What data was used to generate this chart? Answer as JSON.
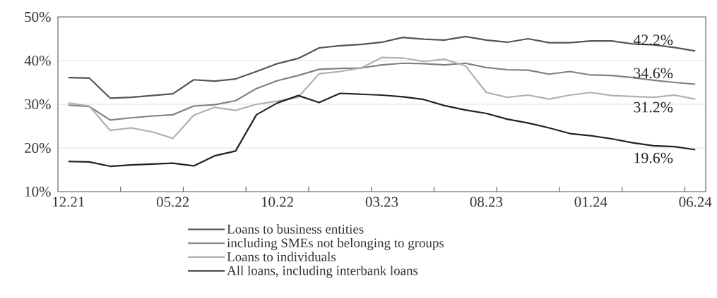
{
  "chart_data": {
    "type": "line",
    "categories": [
      "12.21",
      null,
      null,
      null,
      null,
      "05.22",
      null,
      null,
      null,
      null,
      "10.22",
      null,
      null,
      null,
      null,
      "03.23",
      null,
      null,
      null,
      null,
      "08.23",
      null,
      null,
      null,
      null,
      "01.24",
      null,
      null,
      null,
      null,
      "06.24"
    ],
    "ylim": [
      10,
      50
    ],
    "yticks": [
      {
        "value": 10,
        "label": "10%"
      },
      {
        "value": 20,
        "label": "20%"
      },
      {
        "value": 30,
        "label": "30%"
      },
      {
        "value": 40,
        "label": "40%"
      },
      {
        "value": 50,
        "label": "50%"
      }
    ],
    "grid": "y",
    "legend": "bottom",
    "marker": "none",
    "line_style": "solid",
    "series": [
      {
        "name": "Loans to business entities",
        "color": "#555555",
        "values": [
          36.1,
          36.0,
          31.4,
          31.6,
          32.0,
          32.4,
          35.6,
          35.3,
          35.8,
          37.5,
          39.3,
          40.5,
          42.9,
          43.4,
          43.7,
          44.2,
          45.3,
          44.9,
          44.7,
          45.5,
          44.7,
          44.2,
          45.0,
          44.1,
          44.1,
          44.5,
          44.5,
          43.8,
          43.6,
          43.0,
          42.2
        ]
      },
      {
        "name": "including SMEs not belonging to groups",
        "color": "#808080",
        "values": [
          29.8,
          29.5,
          26.4,
          26.9,
          27.3,
          27.6,
          29.6,
          29.9,
          30.8,
          33.6,
          35.4,
          36.6,
          38.0,
          38.2,
          38.3,
          39.0,
          39.4,
          39.3,
          39.0,
          39.4,
          38.4,
          37.9,
          37.8,
          36.9,
          37.5,
          36.7,
          36.6,
          36.1,
          35.5,
          35.0,
          34.6
        ]
      },
      {
        "name": "Loans to individuals",
        "color": "#b0b0b0",
        "values": [
          30.3,
          29.6,
          24.0,
          24.6,
          23.7,
          22.2,
          27.5,
          29.3,
          28.6,
          30.0,
          30.7,
          31.6,
          37.0,
          37.5,
          38.3,
          40.7,
          40.6,
          39.8,
          40.3,
          38.8,
          32.7,
          31.6,
          32.1,
          31.2,
          32.1,
          32.7,
          32.0,
          31.8,
          31.6,
          32.1,
          31.2
        ]
      },
      {
        "name": "All loans, including interbank loans",
        "color": "#222222",
        "values": [
          16.9,
          16.8,
          15.8,
          16.1,
          16.3,
          16.5,
          15.9,
          18.2,
          19.3,
          27.6,
          30.3,
          32.0,
          30.4,
          32.5,
          32.3,
          32.1,
          31.7,
          31.1,
          29.7,
          28.7,
          27.9,
          26.6,
          25.7,
          24.6,
          23.3,
          22.8,
          22.1,
          21.2,
          20.5,
          20.3,
          19.6
        ]
      }
    ],
    "annotations": [
      {
        "text": "42.2%",
        "x": "06.24",
        "y": 42.2
      },
      {
        "text": "34.6%",
        "x": "06.24",
        "y": 34.6
      },
      {
        "text": "31.2%",
        "x": "06.24",
        "y": 31.2
      },
      {
        "text": "19.6%",
        "x": "06.24",
        "y": 19.6
      }
    ]
  }
}
